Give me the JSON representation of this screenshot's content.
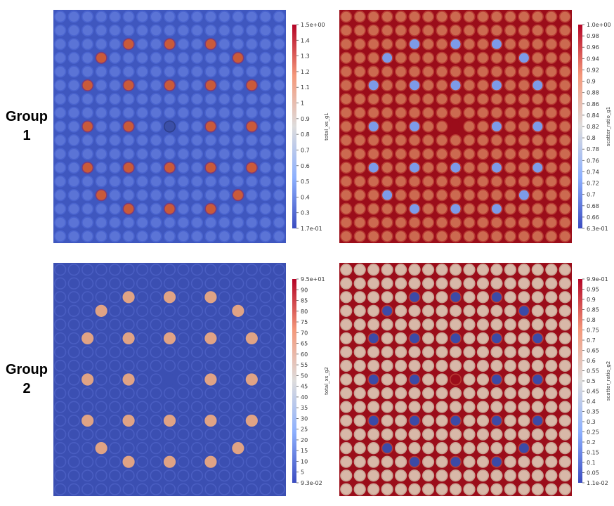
{
  "groups": [
    {
      "label_line1": "Group",
      "label_line2": "1"
    },
    {
      "label_line1": "Group",
      "label_line2": "2"
    }
  ],
  "lattice": {
    "size": 17,
    "pin_count_per_side": 17
  },
  "panels": [
    {
      "id": "total_xs_g1",
      "bg_color": "#3f57bf",
      "pin_color": "#5b74d6",
      "ring_color": "#4a64cf",
      "special_color": "#c95a3a",
      "special_ring": "#7b3c7c",
      "center_color": "#3b4fa8",
      "center_ring": "#2e3f8c",
      "colorbar": {
        "title": "total_xs_g1",
        "gradient": [
          "#b40426",
          "#f4987a",
          "#dddcdc",
          "#8db0fe",
          "#3b4cc0"
        ],
        "ticks": [
          "1.5e+00",
          "1.4",
          "1.3",
          "1.2",
          "1.1",
          "1",
          "0.9",
          "0.8",
          "0.7",
          "0.6",
          "0.5",
          "0.4",
          "0.3",
          "1.7e-01"
        ]
      }
    },
    {
      "id": "scatter_ratio_g1",
      "bg_color": "#9b0d1a",
      "pin_color": "#cc6a50",
      "ring_color": "#b83a33",
      "special_color": "#7d9be8",
      "special_ring": "#b83a33",
      "center_color": "#9b0d1a",
      "center_ring": "#9b0d1a",
      "colorbar": {
        "title": "scatter_ratio_g1",
        "gradient": [
          "#b40426",
          "#f4987a",
          "#dddcdc",
          "#8db0fe",
          "#3b4cc0"
        ],
        "ticks": [
          "1.0e+00",
          "0.98",
          "0.96",
          "0.94",
          "0.92",
          "0.9",
          "0.88",
          "0.86",
          "0.84",
          "0.82",
          "0.8",
          "0.78",
          "0.76",
          "0.74",
          "0.72",
          "0.7",
          "0.68",
          "0.66",
          "6.3e-01"
        ]
      }
    },
    {
      "id": "total_xs_g2",
      "bg_color": "#3b4fb2",
      "pin_color": "#3b4fb2",
      "ring_color": "#4a5ec2",
      "special_color": "#e0a385",
      "special_ring": "#e0a385",
      "center_color": "#3b4fb2",
      "center_ring": "#3b4fb2",
      "colorbar": {
        "title": "total_xs_g2",
        "gradient": [
          "#b40426",
          "#f4987a",
          "#dddcdc",
          "#8db0fe",
          "#3b4cc0"
        ],
        "ticks": [
          "9.5e+01",
          "90",
          "85",
          "80",
          "75",
          "70",
          "65",
          "60",
          "55",
          "50",
          "45",
          "40",
          "35",
          "30",
          "25",
          "20",
          "15",
          "10",
          "5",
          "9.3e-02"
        ]
      }
    },
    {
      "id": "scatter_ratio_g2",
      "bg_color": "#9b0d1a",
      "pin_color": "#d8b8a8",
      "ring_color": "#c9a293",
      "special_color": "#3c4aa6",
      "special_ring": "#b83a33",
      "center_color": "#9b0d1a",
      "center_ring": "#b83a33",
      "colorbar": {
        "title": "scatter_ratio_g2",
        "gradient": [
          "#b40426",
          "#f4987a",
          "#dddcdc",
          "#8db0fe",
          "#3b4cc0"
        ],
        "ticks": [
          "9.9e-01",
          "0.95",
          "0.9",
          "0.85",
          "0.8",
          "0.75",
          "0.7",
          "0.65",
          "0.6",
          "0.55",
          "0.5",
          "0.45",
          "0.4",
          "0.35",
          "0.3",
          "0.25",
          "0.2",
          "0.15",
          "0.1",
          "0.05",
          "1.1e-02"
        ]
      }
    }
  ]
}
